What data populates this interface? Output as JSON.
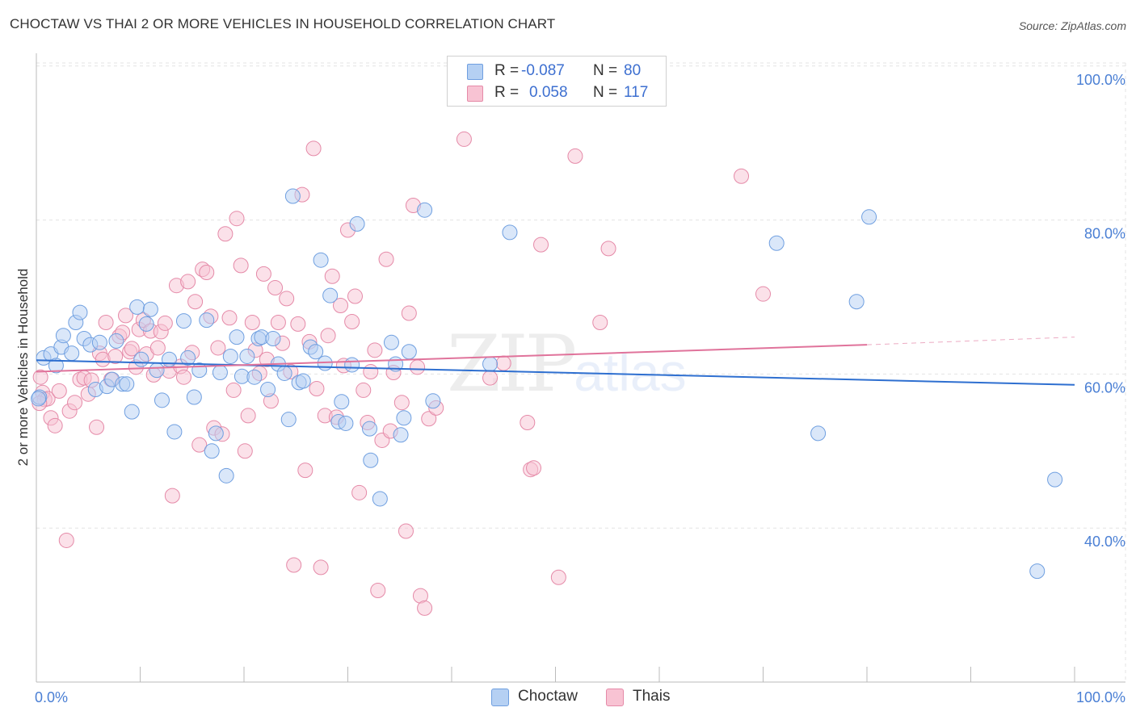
{
  "title": "CHOCTAW VS THAI 2 OR MORE VEHICLES IN HOUSEHOLD CORRELATION CHART",
  "source": "Source: ZipAtlas.com",
  "watermark": {
    "zip": "ZIP",
    "atlas": "atlas"
  },
  "stats": [
    {
      "r_label": "R =",
      "r_value": "-0.087",
      "n_label": "N =",
      "n_value": "80"
    },
    {
      "r_label": "R =",
      "r_value": "0.058",
      "n_label": "N =",
      "n_value": "117"
    }
  ],
  "legend": [
    {
      "label": "Choctaw"
    },
    {
      "label": "Thais"
    }
  ],
  "colors": {
    "choctaw_fill": "#b5d0f3",
    "choctaw_stroke": "#6f9fe0",
    "choctaw_line": "#2e6fd0",
    "thais_fill": "#f8c3d3",
    "thais_stroke": "#e58aa8",
    "thais_line": "#e0739b",
    "tick_label": "#4a7fd4",
    "grid": "#e3e3e3"
  },
  "chart_data": {
    "type": "scatter",
    "title": "CHOCTAW VS THAI 2 OR MORE VEHICLES IN HOUSEHOLD CORRELATION CHART",
    "xlabel": "",
    "ylabel": "2 or more Vehicles in Household",
    "x_ticks": [
      "0.0%",
      "100.0%"
    ],
    "y_ticks": [
      "40.0%",
      "60.0%",
      "80.0%",
      "100.0%"
    ],
    "xlim": [
      0,
      100
    ],
    "ylim": [
      20,
      102
    ],
    "grid": true,
    "legend_position": "bottom",
    "series": [
      {
        "name": "Choctaw",
        "points": [
          [
            0.3,
            57.0
          ],
          [
            0.7,
            62.1
          ],
          [
            1.4,
            62.6
          ],
          [
            1.9,
            61.1
          ],
          [
            2.4,
            63.5
          ],
          [
            2.6,
            65.0
          ],
          [
            3.4,
            62.7
          ],
          [
            3.8,
            66.7
          ],
          [
            4.2,
            68.0
          ],
          [
            4.6,
            64.6
          ],
          [
            5.2,
            63.8
          ],
          [
            5.7,
            58.0
          ],
          [
            6.1,
            64.1
          ],
          [
            6.8,
            58.4
          ],
          [
            7.3,
            59.3
          ],
          [
            7.7,
            64.3
          ],
          [
            8.3,
            58.7
          ],
          [
            8.7,
            58.7
          ],
          [
            9.2,
            55.1
          ],
          [
            9.7,
            68.7
          ],
          [
            10.1,
            61.9
          ],
          [
            10.6,
            66.5
          ],
          [
            11.0,
            68.4
          ],
          [
            11.6,
            60.5
          ],
          [
            12.1,
            56.6
          ],
          [
            12.8,
            61.9
          ],
          [
            13.3,
            52.5
          ],
          [
            14.2,
            66.9
          ],
          [
            14.6,
            62.1
          ],
          [
            15.2,
            57.0
          ],
          [
            15.7,
            60.5
          ],
          [
            16.4,
            67.0
          ],
          [
            16.9,
            50.0
          ],
          [
            17.3,
            52.3
          ],
          [
            17.7,
            60.2
          ],
          [
            18.3,
            46.8
          ],
          [
            18.7,
            62.3
          ],
          [
            19.3,
            64.8
          ],
          [
            19.8,
            59.7
          ],
          [
            20.3,
            62.3
          ],
          [
            21.0,
            59.6
          ],
          [
            21.4,
            64.6
          ],
          [
            21.7,
            64.8
          ],
          [
            22.3,
            58.0
          ],
          [
            22.8,
            64.6
          ],
          [
            23.3,
            61.3
          ],
          [
            23.9,
            60.1
          ],
          [
            24.3,
            54.1
          ],
          [
            24.7,
            83.1
          ],
          [
            25.3,
            58.9
          ],
          [
            25.7,
            59.1
          ],
          [
            26.4,
            63.5
          ],
          [
            26.9,
            62.9
          ],
          [
            27.4,
            74.8
          ],
          [
            27.8,
            61.4
          ],
          [
            28.3,
            70.2
          ],
          [
            29.1,
            53.8
          ],
          [
            29.4,
            56.4
          ],
          [
            29.8,
            53.6
          ],
          [
            30.4,
            61.2
          ],
          [
            30.9,
            79.5
          ],
          [
            32.1,
            52.9
          ],
          [
            32.2,
            48.8
          ],
          [
            33.1,
            43.8
          ],
          [
            34.2,
            64.1
          ],
          [
            34.6,
            61.3
          ],
          [
            35.1,
            52.1
          ],
          [
            35.4,
            54.3
          ],
          [
            35.9,
            62.9
          ],
          [
            37.4,
            81.3
          ],
          [
            38.2,
            56.5
          ],
          [
            43.7,
            61.3
          ],
          [
            45.6,
            78.4
          ],
          [
            71.3,
            77.0
          ],
          [
            75.3,
            52.3
          ],
          [
            79.0,
            69.4
          ],
          [
            80.2,
            80.4
          ],
          [
            96.4,
            34.4
          ],
          [
            98.1,
            46.3
          ],
          [
            0.2,
            56.8
          ]
        ],
        "trend": {
          "x": [
            0,
            100
          ],
          "y": [
            61.8,
            58.6
          ]
        }
      },
      {
        "name": "Thais",
        "points": [
          [
            0.4,
            59.6
          ],
          [
            0.6,
            57.6
          ],
          [
            0.8,
            56.7
          ],
          [
            1.1,
            56.8
          ],
          [
            1.4,
            54.3
          ],
          [
            1.8,
            53.3
          ],
          [
            2.2,
            57.8
          ],
          [
            2.9,
            38.4
          ],
          [
            3.2,
            55.2
          ],
          [
            3.7,
            56.3
          ],
          [
            4.2,
            59.3
          ],
          [
            4.6,
            59.5
          ],
          [
            5.0,
            57.4
          ],
          [
            5.3,
            59.2
          ],
          [
            5.8,
            53.1
          ],
          [
            6.1,
            62.7
          ],
          [
            6.4,
            61.9
          ],
          [
            6.7,
            66.7
          ],
          [
            7.2,
            59.3
          ],
          [
            7.6,
            62.3
          ],
          [
            8.0,
            64.9
          ],
          [
            8.3,
            65.4
          ],
          [
            8.6,
            67.6
          ],
          [
            9.0,
            62.9
          ],
          [
            9.2,
            63.3
          ],
          [
            9.6,
            60.9
          ],
          [
            9.9,
            65.8
          ],
          [
            10.3,
            67.0
          ],
          [
            10.6,
            62.6
          ],
          [
            11.0,
            65.6
          ],
          [
            11.3,
            59.9
          ],
          [
            11.7,
            63.4
          ],
          [
            12.0,
            65.5
          ],
          [
            12.4,
            66.6
          ],
          [
            12.8,
            60.4
          ],
          [
            13.1,
            44.2
          ],
          [
            13.5,
            71.5
          ],
          [
            13.9,
            61.0
          ],
          [
            14.2,
            59.6
          ],
          [
            14.6,
            72.0
          ],
          [
            15.0,
            62.8
          ],
          [
            15.3,
            69.4
          ],
          [
            15.7,
            50.8
          ],
          [
            16.0,
            73.6
          ],
          [
            16.4,
            73.2
          ],
          [
            16.8,
            67.5
          ],
          [
            17.1,
            53.0
          ],
          [
            17.5,
            63.4
          ],
          [
            17.9,
            52.2
          ],
          [
            18.2,
            78.2
          ],
          [
            18.6,
            67.3
          ],
          [
            19.0,
            57.9
          ],
          [
            19.3,
            80.2
          ],
          [
            19.7,
            74.1
          ],
          [
            20.1,
            50.0
          ],
          [
            20.4,
            54.6
          ],
          [
            20.8,
            66.7
          ],
          [
            21.1,
            63.1
          ],
          [
            21.5,
            60.1
          ],
          [
            21.9,
            73.0
          ],
          [
            22.2,
            61.9
          ],
          [
            22.6,
            56.5
          ],
          [
            23.0,
            71.2
          ],
          [
            23.3,
            66.7
          ],
          [
            23.7,
            64.0
          ],
          [
            24.1,
            69.8
          ],
          [
            24.5,
            60.3
          ],
          [
            24.8,
            35.2
          ],
          [
            25.2,
            66.5
          ],
          [
            25.6,
            83.3
          ],
          [
            25.9,
            47.5
          ],
          [
            26.3,
            64.2
          ],
          [
            26.7,
            89.3
          ],
          [
            27.0,
            58.1
          ],
          [
            27.4,
            34.9
          ],
          [
            27.8,
            54.6
          ],
          [
            28.1,
            65.0
          ],
          [
            28.5,
            72.7
          ],
          [
            28.9,
            54.4
          ],
          [
            29.3,
            68.9
          ],
          [
            29.6,
            61.1
          ],
          [
            30.0,
            78.7
          ],
          [
            30.4,
            66.8
          ],
          [
            30.7,
            70.1
          ],
          [
            31.1,
            44.6
          ],
          [
            31.5,
            57.9
          ],
          [
            31.9,
            53.7
          ],
          [
            32.2,
            60.3
          ],
          [
            32.6,
            63.1
          ],
          [
            32.9,
            31.9
          ],
          [
            33.3,
            51.4
          ],
          [
            33.7,
            74.9
          ],
          [
            34.1,
            52.6
          ],
          [
            34.4,
            60.2
          ],
          [
            35.2,
            56.3
          ],
          [
            35.6,
            39.6
          ],
          [
            35.9,
            67.9
          ],
          [
            36.3,
            81.9
          ],
          [
            36.7,
            60.9
          ],
          [
            37.0,
            31.2
          ],
          [
            37.4,
            29.6
          ],
          [
            37.8,
            54.2
          ],
          [
            38.5,
            55.6
          ],
          [
            41.2,
            90.5
          ],
          [
            43.7,
            59.5
          ],
          [
            45.0,
            61.4
          ],
          [
            47.3,
            53.7
          ],
          [
            47.6,
            47.6
          ],
          [
            47.9,
            47.8
          ],
          [
            48.6,
            76.8
          ],
          [
            50.3,
            33.6
          ],
          [
            51.9,
            88.3
          ],
          [
            54.3,
            66.7
          ],
          [
            55.1,
            76.3
          ],
          [
            67.9,
            85.7
          ],
          [
            70.0,
            70.4
          ],
          [
            0.3,
            56.2
          ]
        ],
        "trend": {
          "x": [
            0,
            80
          ],
          "y": [
            60.3,
            63.8
          ]
        },
        "trend_dashed": {
          "x": [
            80,
            100
          ],
          "y": [
            63.8,
            64.8
          ]
        }
      }
    ]
  }
}
